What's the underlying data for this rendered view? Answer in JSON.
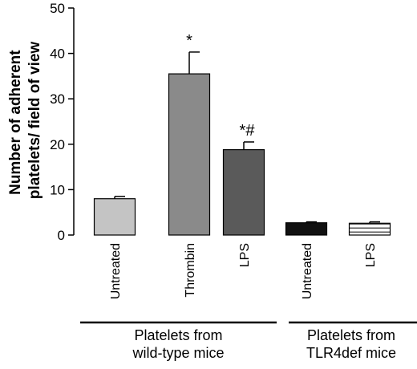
{
  "chart_data": {
    "type": "bar",
    "ylabel_lines": [
      "Number of adherent",
      "platelets/ field of view"
    ],
    "ylim": [
      0,
      50
    ],
    "yticks": [
      0,
      10,
      20,
      30,
      40,
      50
    ],
    "categories": [
      "Untreated",
      "Thrombin",
      "LPS",
      "Untreated",
      "LPS"
    ],
    "values": [
      8,
      35.5,
      18.8,
      2.7,
      2.6
    ],
    "errors": [
      0.5,
      4.8,
      1.7,
      0.2,
      0.3
    ],
    "annotations": [
      "",
      "*",
      "*#",
      "",
      ""
    ],
    "bar_colors": [
      "#c4c4c4",
      "#8a8a8a",
      "#5a5a5a",
      "#111111",
      "#ffffff"
    ],
    "bar_patterns": [
      "solid",
      "solid",
      "solid",
      "solid",
      "striped"
    ],
    "groups": [
      {
        "label_lines": [
          "Platelets from",
          "wild-type mice"
        ],
        "bar_indices": [
          0,
          1,
          2
        ]
      },
      {
        "label_lines": [
          "Platelets from",
          "TLR4def mice"
        ],
        "bar_indices": [
          3,
          4
        ]
      }
    ],
    "grid": false,
    "legend": "none"
  }
}
